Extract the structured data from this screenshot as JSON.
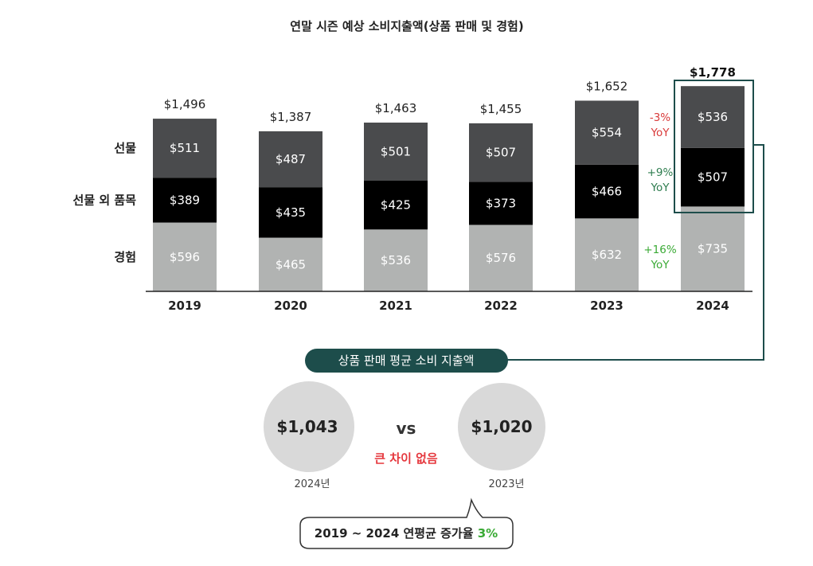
{
  "chart_data": {
    "type": "bar",
    "stacked": true,
    "title": "연말 시즌 예상 소비지출액(상품 판매 및 경험)",
    "categories": [
      "2019",
      "2020",
      "2021",
      "2022",
      "2023",
      "2024"
    ],
    "series": [
      {
        "name": "경험",
        "values": [
          596,
          465,
          536,
          576,
          632,
          735
        ],
        "labels": [
          "$596",
          "$465",
          "$536",
          "$576",
          "$632",
          "$735"
        ],
        "color": "#b1b3b2"
      },
      {
        "name": "선물 외 품목",
        "values": [
          389,
          435,
          425,
          373,
          466,
          507
        ],
        "labels": [
          "$389",
          "$435",
          "$425",
          "$373",
          "$466",
          "$507"
        ],
        "color": "#000000"
      },
      {
        "name": "선물",
        "values": [
          511,
          487,
          501,
          507,
          554,
          536
        ],
        "labels": [
          "$511",
          "$487",
          "$501",
          "$507",
          "$554",
          "$536"
        ],
        "color": "#4a4b4d"
      }
    ],
    "totals": [
      1496,
      1387,
      1463,
      1455,
      1652,
      1778
    ],
    "total_labels": [
      "$1,496",
      "$1,387",
      "$1,463",
      "$1,455",
      "$1,652",
      "$1,778"
    ],
    "highlight_category": "2024",
    "legend": "left",
    "yoy": [
      {
        "series": "선물",
        "change": "-3%",
        "unit": "YoY",
        "color": "#d93a3a"
      },
      {
        "series": "선물 외 품목",
        "change": "+9%",
        "unit": "YoY",
        "color": "#2e7d4f"
      },
      {
        "series": "경험",
        "change": "+16%",
        "unit": "YoY",
        "color": "#3aaa35"
      }
    ]
  },
  "avg_box": {
    "title": "상품 판매 평균 소비 지출액",
    "bg_color": "#1d4d4b",
    "left": {
      "value": "$1,043",
      "year": "2024년"
    },
    "vs": "vs",
    "right": {
      "value": "$1,020",
      "year": "2023년"
    },
    "note": "큰 차이 없음"
  },
  "growth": {
    "text": "2019 ~ 2024 연평균 증가율 ",
    "pct": "3%"
  },
  "colors": {
    "accent": "#1d4d4b",
    "circle": "#d9d9d9"
  }
}
